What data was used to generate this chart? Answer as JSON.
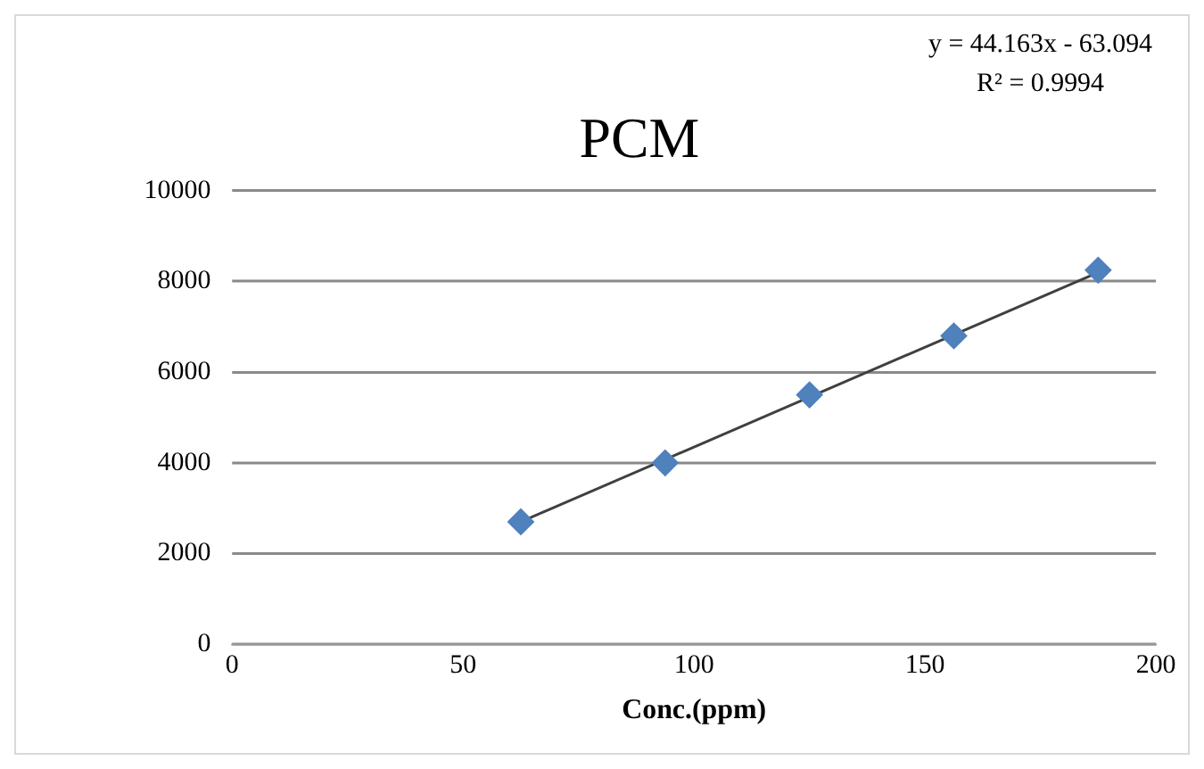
{
  "chart_data": {
    "type": "scatter",
    "title": "PCM",
    "xlabel": "Conc.(ppm)",
    "x": [
      62.5,
      93.75,
      125,
      156.25,
      187.5
    ],
    "series": [
      {
        "type": "scatter",
        "color": "#4f81bd",
        "marker": "diamond",
        "values": [
          2700,
          4000,
          5500,
          6800,
          8250
        ]
      },
      {
        "type": "line",
        "color": "#404040",
        "marker": "none",
        "x": [
          62.5,
          187.5
        ],
        "values": [
          2700,
          8200
        ]
      }
    ],
    "xlim": [
      0,
      200
    ],
    "xticks": [
      0,
      50,
      100,
      150,
      200
    ],
    "ylim": [
      0,
      10000
    ],
    "yticks": [
      0,
      2000,
      4000,
      6000,
      8000,
      10000
    ],
    "grid": "y",
    "legend": false,
    "annotations": [
      "y = 44.163x - 63.094",
      "R² = 0.9994"
    ]
  }
}
